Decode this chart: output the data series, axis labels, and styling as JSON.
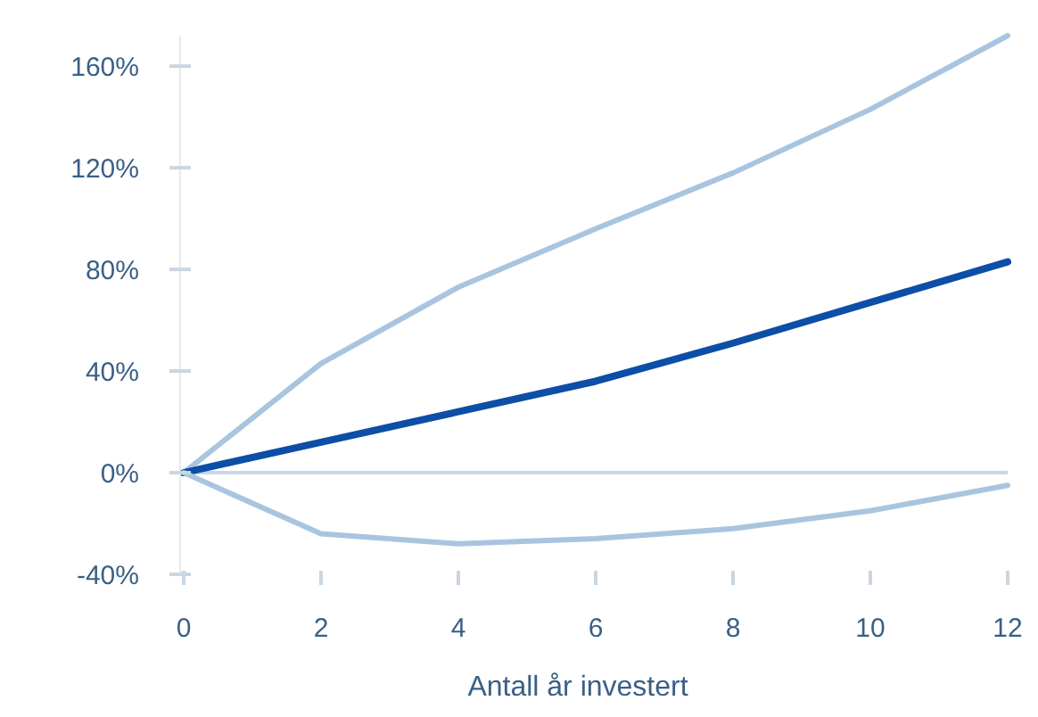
{
  "chart_data": {
    "type": "line",
    "xlabel": "Antall år investert",
    "x": [
      0,
      2,
      4,
      6,
      8,
      10,
      12
    ],
    "series": [
      {
        "color": "#a8c5e0",
        "values": [
          0,
          43,
          73,
          96,
          118,
          143,
          172
        ]
      },
      {
        "color": "#0d4ea6",
        "values": [
          0,
          12,
          24,
          36,
          51,
          67,
          83
        ]
      },
      {
        "color": "#a8c5e0",
        "values": [
          0,
          -24,
          -28,
          -26,
          -22,
          -15,
          -5
        ]
      }
    ],
    "ref_lines": [
      {
        "axis": "y",
        "value": 0,
        "color": "#c6d8ea"
      }
    ],
    "xlim": [
      0,
      12
    ],
    "xticks": [
      0,
      2,
      4,
      6,
      8,
      10,
      12
    ],
    "ylim": [
      -40,
      172
    ],
    "yticks": [
      {
        "value": -40,
        "label": "-40%"
      },
      {
        "value": 0,
        "label": "0%"
      },
      {
        "value": 40,
        "label": "40%"
      },
      {
        "value": 80,
        "label": "80%"
      },
      {
        "value": 120,
        "label": "120%"
      },
      {
        "value": 160,
        "label": "160%"
      }
    ],
    "grid": false,
    "marker": "none",
    "line_style": "solid"
  }
}
